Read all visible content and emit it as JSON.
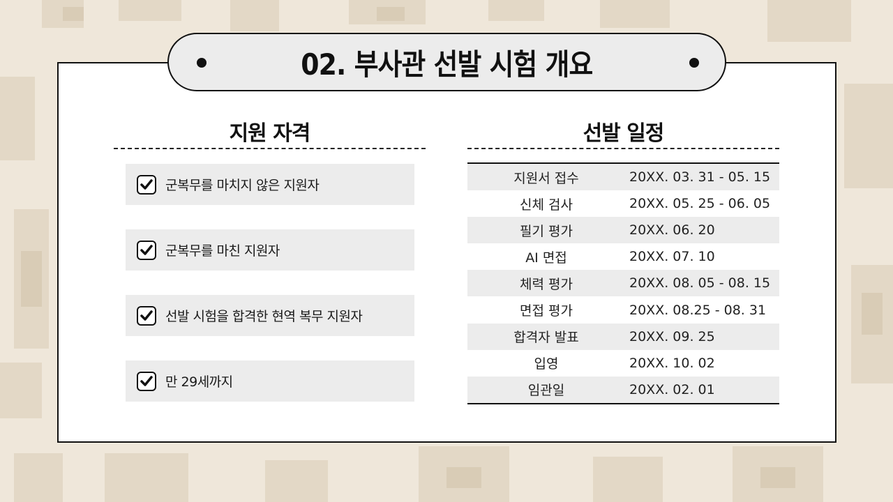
{
  "title": "02. 부사관 선발 시험 개요",
  "colors": {
    "background": "#efe7da",
    "camo_patch": "#e0d4c0",
    "panel": "#ffffff",
    "shade": "#ececec"
  },
  "qualifications": {
    "heading": "지원 자격",
    "items": [
      {
        "icon": "checkbox-checked-icon",
        "label": "군복무를 마치지 않은 지원자"
      },
      {
        "icon": "checkbox-checked-icon",
        "label": "군복무를 마친 지원자"
      },
      {
        "icon": "checkbox-checked-icon",
        "label": "선발 시험을 합격한 현역 복무 지원자"
      },
      {
        "icon": "checkbox-checked-icon",
        "label": "만 29세까지"
      }
    ]
  },
  "schedule": {
    "heading": "선발 일정",
    "rows": [
      {
        "stage": "지원서 접수",
        "date": "20XX. 03. 31 - 05. 15"
      },
      {
        "stage": "신체 검사",
        "date": "20XX. 05. 25 - 06. 05"
      },
      {
        "stage": "필기 평가",
        "date": "20XX. 06. 20"
      },
      {
        "stage": "AI 면접",
        "date": "20XX. 07. 10"
      },
      {
        "stage": "체력 평가",
        "date": "20XX. 08. 05 - 08. 15"
      },
      {
        "stage": "면접 평가",
        "date": "20XX. 08.25 - 08. 31"
      },
      {
        "stage": "합격자 발표",
        "date": "20XX. 09. 25"
      },
      {
        "stage": "입영",
        "date": "20XX. 10. 02"
      },
      {
        "stage": "임관일",
        "date": "20XX. 02. 01"
      }
    ]
  }
}
